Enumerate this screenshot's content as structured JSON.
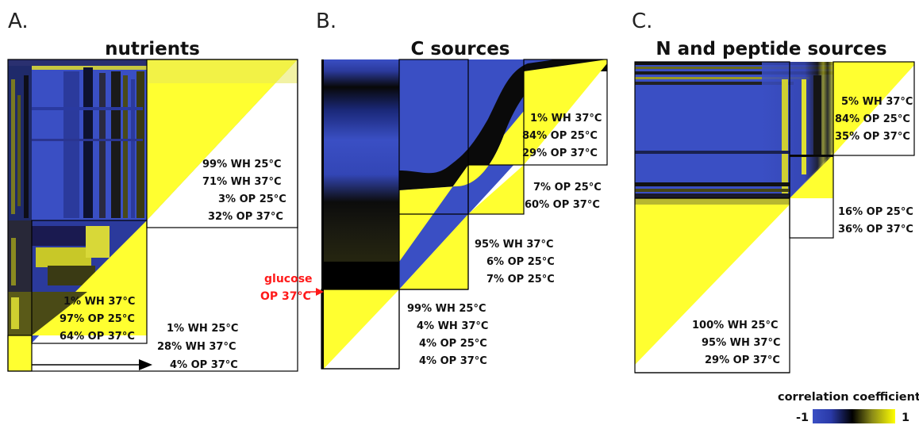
{
  "panels": [
    {
      "letter": "A.",
      "title": "nutrients",
      "annotations": [
        [
          "99% WH 25°C",
          "71% WH 37°C",
          "3% OP 25°C",
          "32% OP 37°C"
        ],
        [
          "1% WH 37°C",
          "97% OP 25°C",
          "64% OP 37°C"
        ],
        [
          "1% WH 25°C",
          "28% WH 37°C",
          "4% OP 37°C"
        ]
      ]
    },
    {
      "letter": "B.",
      "title": "C sources",
      "annotations": [
        [
          "1% WH 37°C",
          "84% OP 25°C",
          "29% OP 37°C"
        ],
        [
          "7% OP 25°C",
          "60% OP 37°C"
        ],
        [
          "95% WH 37°C",
          "6% OP 25°C",
          "7% OP 25°C"
        ],
        [
          "99% WH 25°C",
          "4% WH 37°C",
          "4% OP 25°C",
          "4% OP 37°C"
        ]
      ],
      "callout": [
        "glucose",
        "OP 37°C"
      ]
    },
    {
      "letter": "C.",
      "title": "N and peptide sources",
      "annotations": [
        [
          "5% WH 37°C",
          "84% OP 25°C",
          "35% OP 37°C"
        ],
        [
          "16% OP 25°C",
          "36% OP 37°C"
        ],
        [
          "100% WH 25°C",
          "95% WH 37°C",
          "29% OP 37°C"
        ]
      ]
    }
  ],
  "legend": {
    "title": "correlation coefficient",
    "min_label": "-1",
    "max_label": "1",
    "colors": [
      "#3a4fc4",
      "#000000",
      "#ffff00"
    ]
  }
}
